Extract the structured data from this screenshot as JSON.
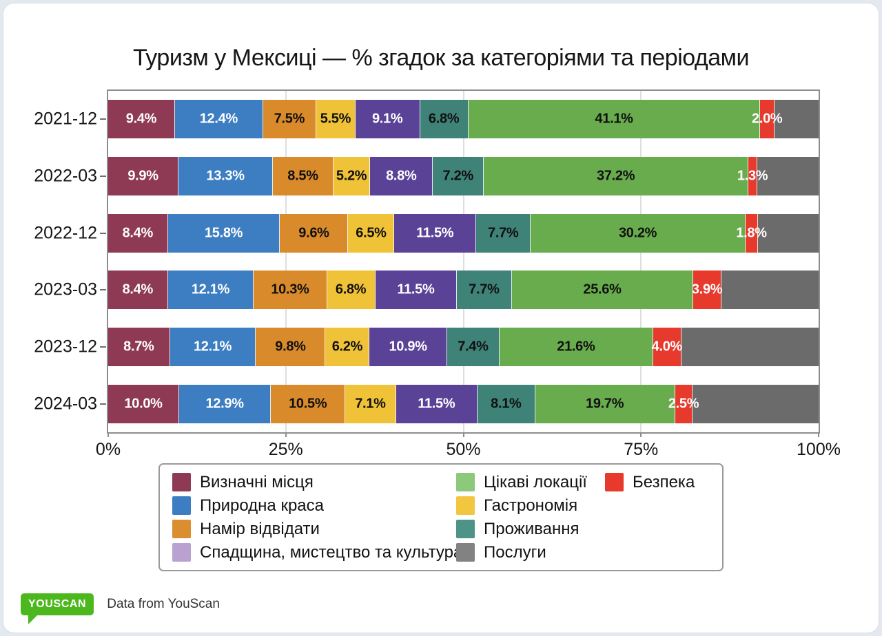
{
  "footer": {
    "logo_text": "YOUSCAN",
    "caption": "Data from YouScan"
  },
  "chart_data": {
    "type": "bar",
    "orientation": "horizontal",
    "stacked": true,
    "title": "Туризм у Мексиці — % згадок за категоріями та періодами",
    "categories": [
      "2021-12",
      "2022-03",
      "2022-12",
      "2023-03",
      "2023-12",
      "2024-03"
    ],
    "xlim": [
      0,
      100
    ],
    "grid": "vertical",
    "legend_position": "bottom",
    "x_ticks": [
      {
        "value": 0,
        "label": "0%"
      },
      {
        "value": 25,
        "label": "25%"
      },
      {
        "value": 50,
        "label": "50%"
      },
      {
        "value": 75,
        "label": "75%"
      },
      {
        "value": 100,
        "label": "100%"
      }
    ],
    "series": [
      {
        "name": "Визначні місця",
        "color": "#8E3A55",
        "legend_color": "#8E3A55",
        "label_color": "#FFFFFF",
        "show_labels": true,
        "overflow_labels": false,
        "values": [
          9.4,
          9.9,
          8.4,
          8.4,
          8.7,
          10.0
        ]
      },
      {
        "name": "Природна краса",
        "color": "#3C7EC1",
        "legend_color": "#3C7EC1",
        "label_color": "#FFFFFF",
        "show_labels": true,
        "overflow_labels": false,
        "values": [
          12.4,
          13.3,
          15.8,
          12.1,
          12.1,
          12.9
        ]
      },
      {
        "name": "Намір відвідати",
        "color": "#D98A2B",
        "legend_color": "#DB8E2F",
        "label_color": "#101010",
        "show_labels": true,
        "overflow_labels": false,
        "values": [
          7.5,
          8.5,
          9.6,
          10.3,
          9.8,
          10.5
        ]
      },
      {
        "name": "Гастрономія",
        "color": "#F0C237",
        "legend_color": "#F2C63F",
        "label_color": "#101010",
        "show_labels": true,
        "overflow_labels": false,
        "values": [
          5.5,
          5.2,
          6.5,
          6.8,
          6.2,
          7.1
        ]
      },
      {
        "name": "Спадщина, мистецтво та культура",
        "color": "#5A4397",
        "legend_color": "#B9A1D1",
        "label_color": "#FFFFFF",
        "show_labels": true,
        "overflow_labels": false,
        "values": [
          9.1,
          8.8,
          11.5,
          11.5,
          10.9,
          11.5
        ]
      },
      {
        "name": "Проживання",
        "color": "#3E8278",
        "legend_color": "#4E9387",
        "label_color": "#101010",
        "show_labels": true,
        "overflow_labels": false,
        "values": [
          6.8,
          7.2,
          7.7,
          7.7,
          7.4,
          8.1
        ]
      },
      {
        "name": "Цікаві локації",
        "color": "#68AC4D",
        "legend_color": "#8DC97A",
        "label_color": "#101010",
        "show_labels": true,
        "overflow_labels": false,
        "values": [
          41.1,
          37.2,
          30.2,
          25.6,
          21.6,
          19.7
        ]
      },
      {
        "name": "Безпека",
        "color": "#E8392D",
        "legend_color": "#E8392D",
        "label_color": "#FFFFFF",
        "show_labels": true,
        "overflow_labels": true,
        "values": [
          2.0,
          1.3,
          1.8,
          3.9,
          4.0,
          2.5
        ]
      },
      {
        "name": "Послуги",
        "color": "#6B6B6B",
        "legend_color": "#828282",
        "label_color": "#FFFFFF",
        "show_labels": false,
        "overflow_labels": false,
        "values": [
          6.2,
          8.6,
          8.5,
          13.7,
          19.3,
          17.7
        ]
      }
    ],
    "legend_columns": [
      [
        0,
        1,
        2,
        4
      ],
      [
        6,
        3,
        5,
        8
      ],
      [
        7
      ]
    ]
  }
}
